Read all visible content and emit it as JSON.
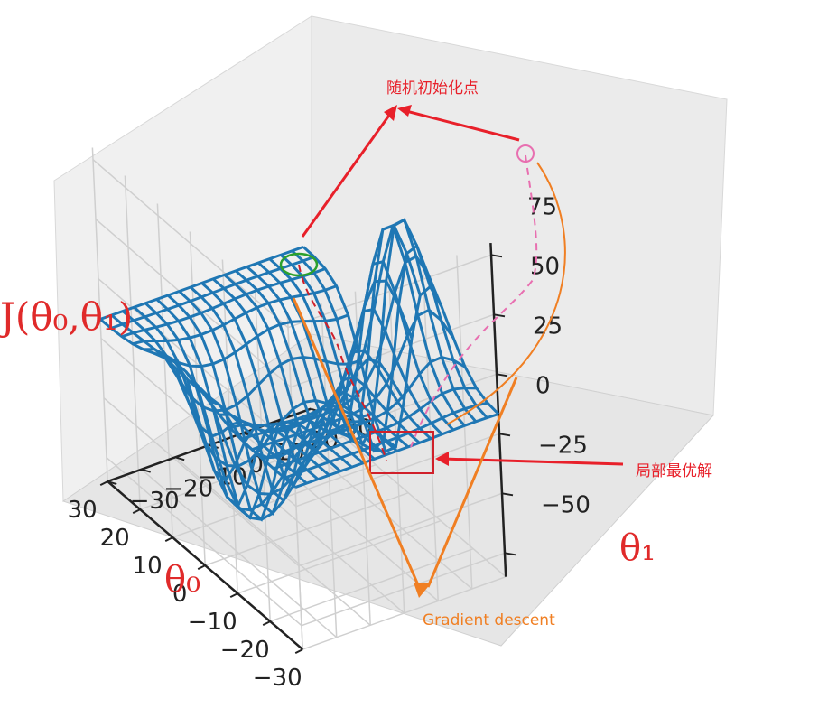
{
  "chart_data": {
    "type": "wireframe-3d",
    "x_ticks": [
      "−30",
      "−20",
      "−10",
      "0",
      "10",
      "20",
      "30"
    ],
    "y_ticks": [
      "−30",
      "−20",
      "−10",
      "0",
      "10",
      "20",
      "30"
    ],
    "z_ticks": [
      "−50",
      "−25",
      "0",
      "25",
      "50",
      "75"
    ],
    "xlim": [
      -30,
      30
    ],
    "ylim": [
      -30,
      30
    ],
    "zlim": [
      -60,
      80
    ],
    "grid": true
  },
  "annotations": {
    "random_init": "随机初始化点",
    "local_optimum": "局部最优解",
    "gradient_descent": "Gradient descent",
    "theta0_label": "θ₀",
    "theta1_label": "θ₁",
    "j_label": "J(θ₀,θ₁)"
  },
  "colors": {
    "wire": "#1f77b4",
    "annotation_red": "#e8202a",
    "annotation_orange": "#f07f23",
    "start_circle": "#2ca02c",
    "pink_path": "#e86fb0"
  }
}
